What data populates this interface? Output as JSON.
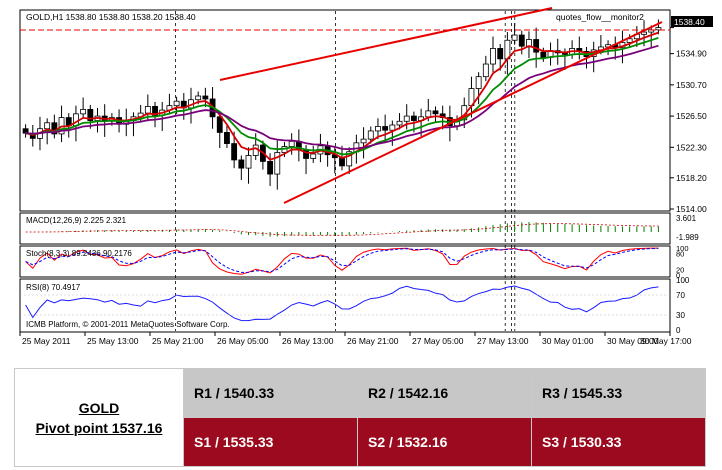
{
  "chart_data": {
    "type": "candlestick",
    "symbol_header": "GOLD,H1  1538.80 1538.80 1538.20 1538.40",
    "overlay_label": "quotes_flow__monitor2",
    "current_price_label": "1538.40",
    "price_axis_ticks": [
      "1538.40",
      "1534.90",
      "1530.70",
      "1526.50",
      "1522.30",
      "1518.20",
      "1514.00"
    ],
    "price_range": [
      1514.0,
      1540.5
    ],
    "time_labels": [
      "25 May 2011",
      "25 May 13:00",
      "25 May 21:00",
      "26 May 05:00",
      "26 May 13:00",
      "26 May 21:00",
      "27 May 05:00",
      "27 May 13:00",
      "30 May 01:00",
      "30 May 09:00",
      "30 May 17:00"
    ],
    "close_series": [
      1524.2,
      1523.5,
      1524.8,
      1525.6,
      1524.1,
      1526.3,
      1525.2,
      1526.8,
      1527.4,
      1525.9,
      1526.5,
      1525.8,
      1526.3,
      1525.4,
      1525.9,
      1526.4,
      1526.9,
      1527.8,
      1526.6,
      1527.3,
      1527.9,
      1528.5,
      1527.6,
      1528.7,
      1529.2,
      1528.8,
      1526.4,
      1524.3,
      1522.8,
      1520.6,
      1519.5,
      1521.2,
      1522.6,
      1520.4,
      1518.7,
      1521.6,
      1522.4,
      1523.1,
      1522.0,
      1520.8,
      1521.4,
      1522.5,
      1521.3,
      1520.9,
      1519.8,
      1521.7,
      1522.9,
      1523.4,
      1524.5,
      1525.1,
      1524.6,
      1525.3,
      1525.8,
      1526.5,
      1525.9,
      1526.4,
      1527.2,
      1526.8,
      1526.3,
      1525.2,
      1526.0,
      1527.9,
      1530.2,
      1531.8,
      1533.5,
      1535.6,
      1534.2,
      1536.7,
      1537.4,
      1535.9,
      1536.8,
      1535.1,
      1534.4,
      1535.3,
      1535.0,
      1534.8,
      1535.6,
      1535.2,
      1534.5,
      1535.4,
      1535.8,
      1536.1,
      1535.7,
      1536.4,
      1536.9,
      1537.5,
      1537.8,
      1538.1,
      1538.4
    ],
    "indicators": {
      "macd": {
        "label": "MACD(12,26,9) 2.225 2.321",
        "axis_ticks": [
          "3.601",
          "-1.989"
        ]
      },
      "stochastic": {
        "label": "Stoch(8,3,3) 89.2436 90.2176",
        "axis_ticks": [
          "100",
          "80",
          "20",
          "0"
        ]
      },
      "rsi": {
        "label": "RSI(8) 70.4917",
        "axis_ticks": [
          "100",
          "70",
          "30",
          "0"
        ],
        "rsi_value": 70.4917
      }
    },
    "copyright": "ICMB Platform, © 2001-2011 MetaQuotes Software Corp.",
    "colors": {
      "bull": "#ffffff",
      "bear": "#000000",
      "ma_fast": "#d60000",
      "ma_mid": "#008c00",
      "ma_slow": "#7a007a",
      "trend": "#e80000",
      "pivot": "#e80000",
      "macd": "#008000",
      "stoch_main": "#ff0000",
      "stoch_signal": "#0000ff",
      "rsi": "#1a1aff"
    }
  },
  "pivot_table": {
    "instrument": "GOLD",
    "pivot_label": "Pivot point 1537.16",
    "r1": "R1 / 1540.33",
    "r2": "R2 / 1542.16",
    "r3": "R3 / 1545.33",
    "s1": "S1 / 1535.33",
    "s2": "S2 / 1532.16",
    "s3": "S3 / 1530.33"
  }
}
